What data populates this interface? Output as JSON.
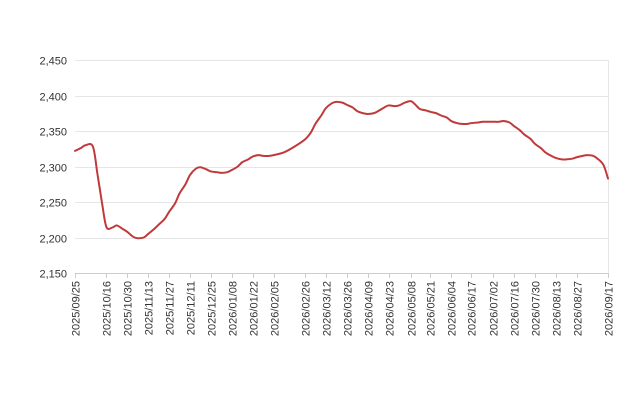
{
  "chart_data": {
    "type": "line",
    "title": "",
    "xlabel": "",
    "ylabel": "",
    "ylim": [
      2150,
      2450
    ],
    "y_ticks": [
      2150,
      2200,
      2250,
      2300,
      2350,
      2400,
      2450
    ],
    "y_tick_labels": [
      "2,150",
      "2,200",
      "2,250",
      "2,300",
      "2,350",
      "2,400",
      "2,450"
    ],
    "x_tick_labels": [
      "2025/09/25",
      "2025/10/16",
      "2025/10/30",
      "2025/11/13",
      "2025/11/27",
      "2025/12/11",
      "2025/12/25",
      "2026/01/08",
      "2026/01/22",
      "2026/02/05",
      "2026/02/26",
      "2026/03/12",
      "2026/03/26",
      "2026/04/09",
      "2026/04/23",
      "2026/05/08",
      "2026/05/21",
      "2026/06/04",
      "2026/06/17",
      "2026/07/02",
      "2026/07/16",
      "2026/07/30",
      "2026/08/13",
      "2026/08/27",
      "2026/09/17"
    ],
    "grid": "horizontal",
    "line_color": "#c0393b",
    "series": [
      {
        "name": "",
        "x": [
          "2025/09/25",
          "2025/09/29",
          "2025/10/02",
          "2025/10/07",
          "2025/10/10",
          "2025/10/13",
          "2025/10/16",
          "2025/10/20",
          "2025/10/23",
          "2025/10/27",
          "2025/10/30",
          "2025/11/03",
          "2025/11/06",
          "2025/11/10",
          "2025/11/13",
          "2025/11/17",
          "2025/11/20",
          "2025/11/24",
          "2025/11/27",
          "2025/12/01",
          "2025/12/04",
          "2025/12/08",
          "2025/12/11",
          "2025/12/15",
          "2025/12/18",
          "2025/12/22",
          "2025/12/25",
          "2025/12/29",
          "2026/01/01",
          "2026/01/05",
          "2026/01/08",
          "2026/01/12",
          "2026/01/15",
          "2026/01/19",
          "2026/01/22",
          "2026/01/26",
          "2026/01/29",
          "2026/02/02",
          "2026/02/05",
          "2026/02/12",
          "2026/02/19",
          "2026/02/26",
          "2026/03/02",
          "2026/03/05",
          "2026/03/09",
          "2026/03/12",
          "2026/03/16",
          "2026/03/19",
          "2026/03/23",
          "2026/03/26",
          "2026/03/30",
          "2026/04/02",
          "2026/04/06",
          "2026/04/09",
          "2026/04/13",
          "2026/04/16",
          "2026/04/20",
          "2026/04/23",
          "2026/04/27",
          "2026/04/30",
          "2026/05/04",
          "2026/05/08",
          "2026/05/11",
          "2026/05/14",
          "2026/05/18",
          "2026/05/21",
          "2026/05/25",
          "2026/05/28",
          "2026/06/01",
          "2026/06/04",
          "2026/06/08",
          "2026/06/11",
          "2026/06/15",
          "2026/06/17",
          "2026/06/22",
          "2026/06/25",
          "2026/06/29",
          "2026/07/02",
          "2026/07/06",
          "2026/07/09",
          "2026/07/13",
          "2026/07/16",
          "2026/07/20",
          "2026/07/23",
          "2026/07/27",
          "2026/07/30",
          "2026/08/03",
          "2026/08/06",
          "2026/08/10",
          "2026/08/13",
          "2026/08/17",
          "2026/08/20",
          "2026/08/24",
          "2026/08/27",
          "2026/08/31",
          "2026/09/03",
          "2026/09/07",
          "2026/09/10",
          "2026/09/14",
          "2026/09/17"
        ],
        "values": [
          2322,
          2326,
          2330,
          2328,
          2290,
          2250,
          2215,
          2214,
          2217,
          2212,
          2208,
          2201,
          2199,
          2200,
          2205,
          2212,
          2218,
          2226,
          2236,
          2248,
          2262,
          2275,
          2288,
          2297,
          2299,
          2296,
          2293,
          2292,
          2291,
          2292,
          2295,
          2300,
          2306,
          2310,
          2314,
          2316,
          2315,
          2315,
          2316,
          2320,
          2328,
          2338,
          2348,
          2360,
          2372,
          2382,
          2389,
          2391,
          2390,
          2387,
          2383,
          2378,
          2375,
          2374,
          2375,
          2378,
          2383,
          2386,
          2385,
          2386,
          2390,
          2392,
          2387,
          2381,
          2379,
          2377,
          2375,
          2372,
          2369,
          2364,
          2361,
          2360,
          2360,
          2361,
          2362,
          2363,
          2363,
          2363,
          2363,
          2364,
          2362,
          2357,
          2351,
          2345,
          2339,
          2332,
          2326,
          2320,
          2315,
          2312,
          2310,
          2310,
          2311,
          2313,
          2315,
          2316,
          2315,
          2311,
          2302,
          2283
        ]
      }
    ]
  }
}
